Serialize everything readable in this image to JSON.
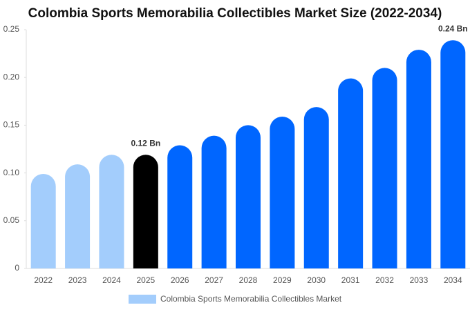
{
  "chart_data": {
    "type": "bar",
    "title": "Colombia Sports Memorabilia Collectibles Market Size (2022-2034)",
    "categories": [
      "2022",
      "2023",
      "2024",
      "2025",
      "2026",
      "2027",
      "2028",
      "2029",
      "2030",
      "2031",
      "2032",
      "2033",
      "2034"
    ],
    "series": [
      {
        "name": "Colombia Sports Memorabilia Collectibles Market",
        "color": "#a3cdfc",
        "values": [
          0.099,
          0.109,
          0.119,
          0.119,
          0.129,
          0.139,
          0.15,
          0.159,
          0.169,
          0.199,
          0.21,
          0.229,
          0.239
        ],
        "value_labels": [
          null,
          null,
          null,
          "0.12 Bn",
          null,
          null,
          null,
          null,
          null,
          null,
          null,
          null,
          "0.24 Bn"
        ],
        "colors": [
          "#a3cdfc",
          "#a3cdfc",
          "#a3cdfc",
          "#000000",
          "#0066ff",
          "#0066ff",
          "#0066ff",
          "#0066ff",
          "#0066ff",
          "#0066ff",
          "#0066ff",
          "#0066ff",
          "#0066ff"
        ]
      }
    ],
    "ylim": [
      0,
      0.25
    ],
    "yticks": [
      0,
      {
        "value": 0.05,
        "label": "0.05"
      },
      {
        "value": 0.1,
        "label": "0.10"
      },
      0.15,
      {
        "value": 0.2,
        "label": "0.20"
      },
      0.25
    ],
    "grid": false
  }
}
